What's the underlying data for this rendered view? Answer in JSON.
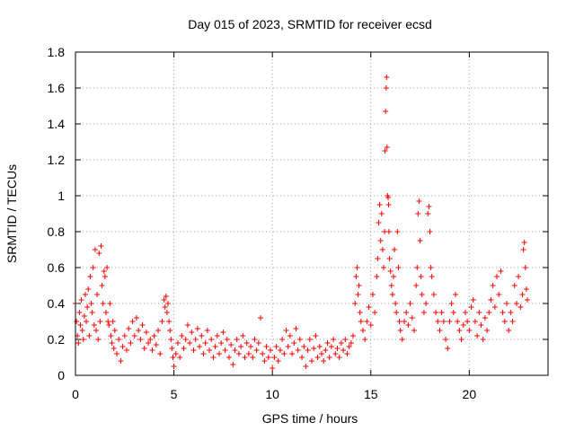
{
  "chart_data": {
    "type": "scatter",
    "title": "Day 015 of 2023, SRMTID for receiver ecsd",
    "xlabel": "GPS time / hours",
    "ylabel": "SRMTID / TECUs",
    "xlim": [
      0,
      24
    ],
    "ylim": [
      0,
      1.8
    ],
    "xticks": [
      0,
      5,
      10,
      15,
      20
    ],
    "xtick_labels": [
      "0",
      "5",
      "10",
      "15",
      "20"
    ],
    "yticks": [
      0,
      0.2,
      0.4,
      0.6,
      0.8,
      1,
      1.2,
      1.4,
      1.6,
      1.8
    ],
    "ytick_labels": [
      "0",
      "0.2",
      "0.4",
      "0.6",
      "0.8",
      "1",
      "1.2",
      "1.4",
      "1.6",
      "1.8"
    ],
    "grid": true,
    "marker": "+",
    "marker_color": "#ff0000",
    "series": [
      {
        "name": "SRMTID",
        "points": [
          [
            0.0,
            0.4
          ],
          [
            0.05,
            0.3
          ],
          [
            0.1,
            0.22
          ],
          [
            0.15,
            0.18
          ],
          [
            0.2,
            0.35
          ],
          [
            0.25,
            0.28
          ],
          [
            0.3,
            0.42
          ],
          [
            0.35,
            0.25
          ],
          [
            0.4,
            0.2
          ],
          [
            0.45,
            0.33
          ],
          [
            0.5,
            0.45
          ],
          [
            0.55,
            0.3
          ],
          [
            0.6,
            0.38
          ],
          [
            0.65,
            0.48
          ],
          [
            0.7,
            0.22
          ],
          [
            0.75,
            0.55
          ],
          [
            0.8,
            0.4
          ],
          [
            0.85,
            0.35
          ],
          [
            0.9,
            0.6
          ],
          [
            0.95,
            0.28
          ],
          [
            1.0,
            0.7
          ],
          [
            1.05,
            0.25
          ],
          [
            1.1,
            0.45
          ],
          [
            1.15,
            0.2
          ],
          [
            1.2,
            0.68
          ],
          [
            1.25,
            0.3
          ],
          [
            1.3,
            0.72
          ],
          [
            1.35,
            0.5
          ],
          [
            1.4,
            0.4
          ],
          [
            1.45,
            0.58
          ],
          [
            1.5,
            0.55
          ],
          [
            1.55,
            0.35
          ],
          [
            1.6,
            0.6
          ],
          [
            1.65,
            0.3
          ],
          [
            1.7,
            0.28
          ],
          [
            1.75,
            0.4
          ],
          [
            1.8,
            0.22
          ],
          [
            1.85,
            0.18
          ],
          [
            1.9,
            0.3
          ],
          [
            1.95,
            0.15
          ],
          [
            2.0,
            0.25
          ],
          [
            2.1,
            0.12
          ],
          [
            2.2,
            0.2
          ],
          [
            2.3,
            0.08
          ],
          [
            2.4,
            0.16
          ],
          [
            2.5,
            0.22
          ],
          [
            2.6,
            0.14
          ],
          [
            2.7,
            0.26
          ],
          [
            2.8,
            0.18
          ],
          [
            2.9,
            0.3
          ],
          [
            3.0,
            0.22
          ],
          [
            3.1,
            0.32
          ],
          [
            3.2,
            0.25
          ],
          [
            3.3,
            0.2
          ],
          [
            3.4,
            0.28
          ],
          [
            3.5,
            0.15
          ],
          [
            3.6,
            0.24
          ],
          [
            3.7,
            0.18
          ],
          [
            3.8,
            0.2
          ],
          [
            3.9,
            0.14
          ],
          [
            4.0,
            0.22
          ],
          [
            4.1,
            0.17
          ],
          [
            4.2,
            0.25
          ],
          [
            4.3,
            0.12
          ],
          [
            4.4,
            0.3
          ],
          [
            4.5,
            0.42
          ],
          [
            4.55,
            0.38
          ],
          [
            4.6,
            0.44
          ],
          [
            4.65,
            0.35
          ],
          [
            4.7,
            0.4
          ],
          [
            4.75,
            0.3
          ],
          [
            4.8,
            0.25
          ],
          [
            4.85,
            0.2
          ],
          [
            4.9,
            0.15
          ],
          [
            4.95,
            0.1
          ],
          [
            5.0,
            0.05
          ],
          [
            5.1,
            0.12
          ],
          [
            5.2,
            0.18
          ],
          [
            5.3,
            0.1
          ],
          [
            5.4,
            0.22
          ],
          [
            5.5,
            0.15
          ],
          [
            5.6,
            0.2
          ],
          [
            5.7,
            0.28
          ],
          [
            5.8,
            0.18
          ],
          [
            5.9,
            0.24
          ],
          [
            6.0,
            0.14
          ],
          [
            6.1,
            0.2
          ],
          [
            6.2,
            0.26
          ],
          [
            6.3,
            0.16
          ],
          [
            6.4,
            0.22
          ],
          [
            6.5,
            0.12
          ],
          [
            6.6,
            0.18
          ],
          [
            6.7,
            0.25
          ],
          [
            6.8,
            0.14
          ],
          [
            6.9,
            0.2
          ],
          [
            7.0,
            0.1
          ],
          [
            7.1,
            0.16
          ],
          [
            7.2,
            0.22
          ],
          [
            7.3,
            0.12
          ],
          [
            7.4,
            0.18
          ],
          [
            7.5,
            0.24
          ],
          [
            7.6,
            0.14
          ],
          [
            7.7,
            0.2
          ],
          [
            7.8,
            0.1
          ],
          [
            7.9,
            0.17
          ],
          [
            8.0,
            0.06
          ],
          [
            8.1,
            0.14
          ],
          [
            8.2,
            0.2
          ],
          [
            8.3,
            0.12
          ],
          [
            8.4,
            0.16
          ],
          [
            8.5,
            0.22
          ],
          [
            8.6,
            0.1
          ],
          [
            8.7,
            0.18
          ],
          [
            8.8,
            0.12
          ],
          [
            8.9,
            0.16
          ],
          [
            9.0,
            0.1
          ],
          [
            9.1,
            0.2
          ],
          [
            9.2,
            0.14
          ],
          [
            9.3,
            0.18
          ],
          [
            9.4,
            0.32
          ],
          [
            9.5,
            0.12
          ],
          [
            9.6,
            0.08
          ],
          [
            9.7,
            0.16
          ],
          [
            9.8,
            0.1
          ],
          [
            9.9,
            0.14
          ],
          [
            10.0,
            0.04
          ],
          [
            10.1,
            0.1
          ],
          [
            10.2,
            0.16
          ],
          [
            10.3,
            0.08
          ],
          [
            10.4,
            0.14
          ],
          [
            10.5,
            0.2
          ],
          [
            10.6,
            0.12
          ],
          [
            10.7,
            0.25
          ],
          [
            10.8,
            0.16
          ],
          [
            10.9,
            0.22
          ],
          [
            11.0,
            0.12
          ],
          [
            11.1,
            0.18
          ],
          [
            11.2,
            0.26
          ],
          [
            11.3,
            0.14
          ],
          [
            11.4,
            0.2
          ],
          [
            11.5,
            0.1
          ],
          [
            11.6,
            0.16
          ],
          [
            11.7,
            0.05
          ],
          [
            11.8,
            0.14
          ],
          [
            11.9,
            0.2
          ],
          [
            12.0,
            0.08
          ],
          [
            12.1,
            0.15
          ],
          [
            12.2,
            0.22
          ],
          [
            12.3,
            0.1
          ],
          [
            12.4,
            0.16
          ],
          [
            12.5,
            0.12
          ],
          [
            12.6,
            0.08
          ],
          [
            12.7,
            0.14
          ],
          [
            12.8,
            0.18
          ],
          [
            12.9,
            0.1
          ],
          [
            13.0,
            0.16
          ],
          [
            13.1,
            0.2
          ],
          [
            13.2,
            0.12
          ],
          [
            13.3,
            0.15
          ],
          [
            13.4,
            0.1
          ],
          [
            13.5,
            0.18
          ],
          [
            13.6,
            0.14
          ],
          [
            13.7,
            0.2
          ],
          [
            13.8,
            0.12
          ],
          [
            13.9,
            0.16
          ],
          [
            14.0,
            0.18
          ],
          [
            14.1,
            0.22
          ],
          [
            14.2,
            0.4
          ],
          [
            14.25,
            0.55
          ],
          [
            14.3,
            0.6
          ],
          [
            14.35,
            0.45
          ],
          [
            14.4,
            0.5
          ],
          [
            14.45,
            0.35
          ],
          [
            14.5,
            0.3
          ],
          [
            14.6,
            0.25
          ],
          [
            14.7,
            0.2
          ],
          [
            14.8,
            0.3
          ],
          [
            14.9,
            0.38
          ],
          [
            15.0,
            0.28
          ],
          [
            15.1,
            0.45
          ],
          [
            15.2,
            0.35
          ],
          [
            15.3,
            0.55
          ],
          [
            15.35,
            0.65
          ],
          [
            15.4,
            0.85
          ],
          [
            15.45,
            0.95
          ],
          [
            15.5,
            0.75
          ],
          [
            15.55,
            0.9
          ],
          [
            15.6,
            0.7
          ],
          [
            15.65,
            0.6
          ],
          [
            15.7,
            0.8
          ],
          [
            15.72,
            1.25
          ],
          [
            15.75,
            1.47
          ],
          [
            15.78,
            1.6
          ],
          [
            15.8,
            1.66
          ],
          [
            15.82,
            1.27
          ],
          [
            15.85,
            1.0
          ],
          [
            15.88,
            0.99
          ],
          [
            15.9,
            0.95
          ],
          [
            15.92,
            0.8
          ],
          [
            15.95,
            0.65
          ],
          [
            16.0,
            0.58
          ],
          [
            16.05,
            0.5
          ],
          [
            16.1,
            0.45
          ],
          [
            16.15,
            0.55
          ],
          [
            16.2,
            0.7
          ],
          [
            16.25,
            0.4
          ],
          [
            16.3,
            0.35
          ],
          [
            16.35,
            0.8
          ],
          [
            16.4,
            0.6
          ],
          [
            16.45,
            0.3
          ],
          [
            16.5,
            0.25
          ],
          [
            16.6,
            0.2
          ],
          [
            16.7,
            0.3
          ],
          [
            16.8,
            0.35
          ],
          [
            16.9,
            0.28
          ],
          [
            17.0,
            0.4
          ],
          [
            17.1,
            0.32
          ],
          [
            17.2,
            0.25
          ],
          [
            17.3,
            0.5
          ],
          [
            17.35,
            0.6
          ],
          [
            17.4,
            0.9
          ],
          [
            17.45,
            0.97
          ],
          [
            17.5,
            0.75
          ],
          [
            17.55,
            0.55
          ],
          [
            17.6,
            0.45
          ],
          [
            17.7,
            0.35
          ],
          [
            17.8,
            0.4
          ],
          [
            17.9,
            0.9
          ],
          [
            17.95,
            0.94
          ],
          [
            18.0,
            0.8
          ],
          [
            18.05,
            0.6
          ],
          [
            18.1,
            0.55
          ],
          [
            18.2,
            0.45
          ],
          [
            18.3,
            0.35
          ],
          [
            18.4,
            0.3
          ],
          [
            18.5,
            0.25
          ],
          [
            18.6,
            0.35
          ],
          [
            18.7,
            0.3
          ],
          [
            18.8,
            0.2
          ],
          [
            18.9,
            0.15
          ],
          [
            19.0,
            0.3
          ],
          [
            19.1,
            0.4
          ],
          [
            19.2,
            0.35
          ],
          [
            19.3,
            0.45
          ],
          [
            19.4,
            0.3
          ],
          [
            19.5,
            0.25
          ],
          [
            19.6,
            0.2
          ],
          [
            19.7,
            0.28
          ],
          [
            19.8,
            0.35
          ],
          [
            19.9,
            0.3
          ],
          [
            20.0,
            0.25
          ],
          [
            20.1,
            0.38
          ],
          [
            20.2,
            0.42
          ],
          [
            20.3,
            0.3
          ],
          [
            20.4,
            0.22
          ],
          [
            20.5,
            0.35
          ],
          [
            20.6,
            0.28
          ],
          [
            20.7,
            0.2
          ],
          [
            20.8,
            0.32
          ],
          [
            20.9,
            0.25
          ],
          [
            21.0,
            0.35
          ],
          [
            21.1,
            0.42
          ],
          [
            21.2,
            0.5
          ],
          [
            21.3,
            0.38
          ],
          [
            21.4,
            0.55
          ],
          [
            21.5,
            0.45
          ],
          [
            21.6,
            0.58
          ],
          [
            21.7,
            0.35
          ],
          [
            21.8,
            0.3
          ],
          [
            21.9,
            0.4
          ],
          [
            22.0,
            0.25
          ],
          [
            22.1,
            0.35
          ],
          [
            22.2,
            0.3
          ],
          [
            22.3,
            0.5
          ],
          [
            22.4,
            0.4
          ],
          [
            22.5,
            0.55
          ],
          [
            22.6,
            0.38
          ],
          [
            22.7,
            0.45
          ],
          [
            22.75,
            0.7
          ],
          [
            22.8,
            0.74
          ],
          [
            22.85,
            0.6
          ],
          [
            22.9,
            0.48
          ],
          [
            22.95,
            0.42
          ]
        ]
      }
    ]
  }
}
